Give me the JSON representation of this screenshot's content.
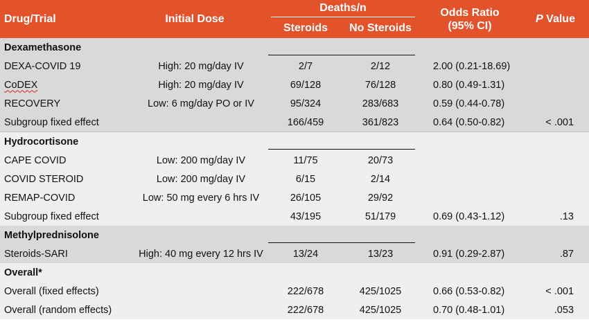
{
  "header": {
    "drug_trial": "Drug/Trial",
    "initial_dose": "Initial Dose",
    "deaths": "Deaths/n",
    "steroids": "Steroids",
    "no_steroids": "No Steroids",
    "odds_ratio_line1": "Odds Ratio",
    "odds_ratio_line2": "(95% CI)",
    "p_label_italic": "P",
    "p_label_rest": " Value"
  },
  "groups": {
    "dexa": {
      "title": "Dexamethasone",
      "rows": [
        {
          "name": "DEXA-COVID 19",
          "dose": "High: 20 mg/day IV",
          "steroids": "2/7",
          "no_steroids": "2/12",
          "or": "2.00 (0.21-18.69)",
          "p": ""
        },
        {
          "name": "CoDEX",
          "dose": "High: 20 mg/day IV",
          "steroids": "69/128",
          "no_steroids": "76/128",
          "or": "0.80 (0.49-1.31)",
          "p": ""
        },
        {
          "name": "RECOVERY",
          "dose": "Low: 6 mg/day PO or IV",
          "steroids": "95/324",
          "no_steroids": "283/683",
          "or": "0.59 (0.44-0.78)",
          "p": ""
        },
        {
          "name": "Subgroup fixed effect",
          "dose": "",
          "steroids": "166/459",
          "no_steroids": "361/823",
          "or": "0.64 (0.50-0.82)",
          "p": "< .001"
        }
      ]
    },
    "hydro": {
      "title": "Hydrocortisone",
      "rows": [
        {
          "name": "CAPE COVID",
          "dose": "Low: 200 mg/day IV",
          "steroids": "11/75",
          "no_steroids": "20/73",
          "or": "",
          "p": ""
        },
        {
          "name": "COVID STEROID",
          "dose": "Low: 200 mg/day IV",
          "steroids": "6/15",
          "no_steroids": "2/14",
          "or": "",
          "p": ""
        },
        {
          "name": "REMAP-COVID",
          "dose": "Low: 50 mg every 6 hrs IV",
          "steroids": "26/105",
          "no_steroids": "29/92",
          "or": "",
          "p": ""
        },
        {
          "name": "Subgroup fixed effect",
          "dose": "",
          "steroids": "43/195",
          "no_steroids": "51/179",
          "or": "0.69 (0.43-1.12)",
          "p": ".13"
        }
      ]
    },
    "methyl": {
      "title": "Methylprednisolone",
      "rows": [
        {
          "name": "Steroids-SARI",
          "dose": "High: 40 mg every 12 hrs IV",
          "steroids": "13/24",
          "no_steroids": "13/23",
          "or": "0.91 (0.29-2.87)",
          "p": ".87"
        }
      ]
    },
    "overall": {
      "title": "Overall*",
      "rows": [
        {
          "name": "Overall (fixed effects)",
          "dose": "",
          "steroids": "222/678",
          "no_steroids": "425/1025",
          "or": "0.66 (0.53-0.82)",
          "p": "< .001"
        },
        {
          "name": "Overall (random effects)",
          "dose": "",
          "steroids": "222/678",
          "no_steroids": "425/1025",
          "or": "0.70 (0.48-1.01)",
          "p": ".053"
        }
      ]
    }
  },
  "colors": {
    "header_bg": "#e2522b",
    "row_gray": "#d9d9da",
    "row_light": "#efefef"
  }
}
